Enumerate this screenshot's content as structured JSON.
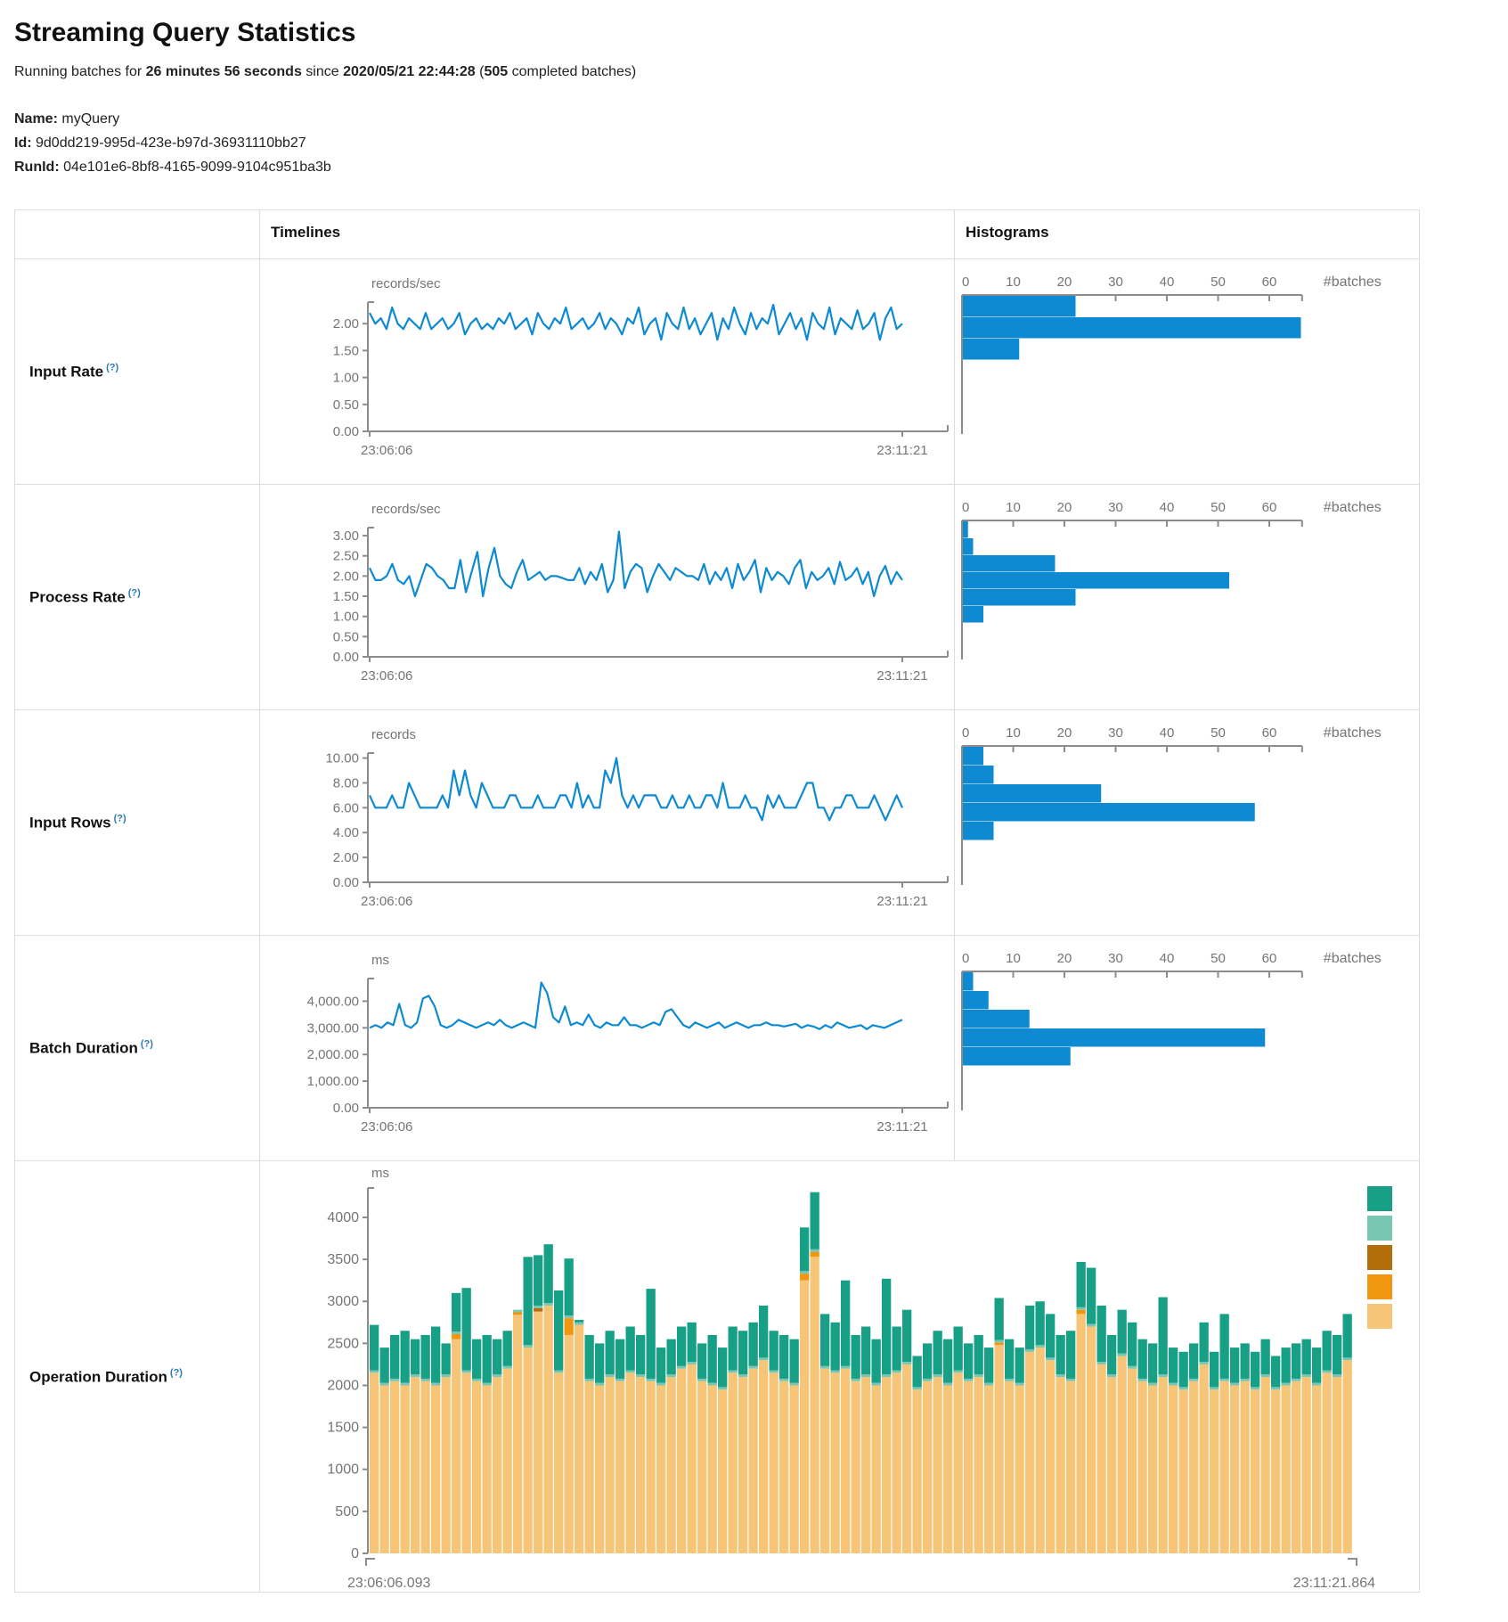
{
  "header": {
    "title": "Streaming Query Statistics",
    "running_prefix": "Running batches for ",
    "duration": "26 minutes 56 seconds",
    "since": " since ",
    "start_time": "2020/05/21 22:44:28",
    "paren_open": " (",
    "completed_batches": "505",
    "completed_suffix": " completed batches)",
    "name_label": "Name:",
    "name": "myQuery",
    "id_label": "Id:",
    "id": "9d0dd219-995d-423e-b97d-36931110bb27",
    "runid_label": "RunId:",
    "runid": "04e101e6-8bf8-4165-9099-9104c951ba3b"
  },
  "table": {
    "timelines_header": "Timelines",
    "histograms_header": "Histograms",
    "help_marker": "(?)",
    "batches_axis_label": "#batches"
  },
  "colors": {
    "line_blue": "#0d8ad1",
    "histogram_blue": "#0d8ad1",
    "axis_gray": "#8c8c8c",
    "tick_text": "#757575",
    "teal": "#17a085",
    "light_teal": "#79c7b2",
    "dark_orange": "#b26e0a",
    "orange": "#f0960f",
    "tan": "#f6c577"
  },
  "chart_data": [
    {
      "row_label": "Input Rate",
      "type": "line",
      "unit": "records/sec",
      "x_start": "23:06:06",
      "x_end": "23:11:21",
      "y_tick_values": [
        0,
        0.5,
        1,
        1.5,
        2
      ],
      "y_tick_labels": [
        "0.00",
        "0.50",
        "1.00",
        "1.50",
        "2.00"
      ],
      "y_max": 2.4,
      "values": [
        2.2,
        2.0,
        2.1,
        1.9,
        2.3,
        2.0,
        1.9,
        2.1,
        2.0,
        1.9,
        2.2,
        1.9,
        2.0,
        2.1,
        1.9,
        2.0,
        2.2,
        1.8,
        2.0,
        2.1,
        1.9,
        2.0,
        1.9,
        2.1,
        2.0,
        2.2,
        1.9,
        2.0,
        2.1,
        1.8,
        2.2,
        2.0,
        1.9,
        2.1,
        2.0,
        2.3,
        1.9,
        2.0,
        2.1,
        1.9,
        2.0,
        2.2,
        1.9,
        2.1,
        2.0,
        1.8,
        2.1,
        2.0,
        2.3,
        1.8,
        2.0,
        2.1,
        1.7,
        2.2,
        2.0,
        1.9,
        2.3,
        1.9,
        2.1,
        1.8,
        2.0,
        2.2,
        1.7,
        2.1,
        1.9,
        2.3,
        2.0,
        1.8,
        2.2,
        1.9,
        2.1,
        2.0,
        2.35,
        1.8,
        2.0,
        2.2,
        1.9,
        2.1,
        1.7,
        2.2,
        2.0,
        1.9,
        2.3,
        1.8,
        2.1,
        2.0,
        1.9,
        2.25,
        1.9,
        2.0,
        2.2,
        1.7,
        2.1,
        2.3,
        1.9,
        2.0
      ],
      "histogram": {
        "tick_values": [
          0,
          10,
          20,
          30,
          40,
          50,
          60
        ],
        "axis_max": 66.4,
        "counts": [
          22,
          66,
          11
        ]
      }
    },
    {
      "row_label": "Process Rate",
      "type": "line",
      "unit": "records/sec",
      "x_start": "23:06:06",
      "x_end": "23:11:21",
      "y_tick_values": [
        0,
        0.5,
        1,
        1.5,
        2,
        2.5,
        3
      ],
      "y_tick_labels": [
        "0.00",
        "0.50",
        "1.00",
        "1.50",
        "2.00",
        "2.50",
        "3.00"
      ],
      "y_max": 3.2,
      "values": [
        2.2,
        1.9,
        1.9,
        2.0,
        2.3,
        1.9,
        1.8,
        2.0,
        1.5,
        1.9,
        2.3,
        2.2,
        2.0,
        1.9,
        1.7,
        1.7,
        2.4,
        1.6,
        2.1,
        2.6,
        1.5,
        2.2,
        2.7,
        2.0,
        1.8,
        1.7,
        2.1,
        2.4,
        1.9,
        2.0,
        2.1,
        1.9,
        2.0,
        2.0,
        1.95,
        1.9,
        1.9,
        2.2,
        1.8,
        2.1,
        1.9,
        2.3,
        1.6,
        1.9,
        3.1,
        1.7,
        2.1,
        2.3,
        2.2,
        1.6,
        2.0,
        2.3,
        2.1,
        1.9,
        2.2,
        2.1,
        2.0,
        2.0,
        1.9,
        2.3,
        1.8,
        2.1,
        1.9,
        2.2,
        1.7,
        2.3,
        1.9,
        2.1,
        2.4,
        1.6,
        2.2,
        1.9,
        2.1,
        2.0,
        1.8,
        2.2,
        2.4,
        1.7,
        2.1,
        1.9,
        2.0,
        2.2,
        1.8,
        2.35,
        1.9,
        2.0,
        2.2,
        1.8,
        2.1,
        1.5,
        2.0,
        2.25,
        1.8,
        2.1,
        1.9
      ],
      "histogram": {
        "tick_values": [
          0,
          10,
          20,
          30,
          40,
          50,
          60
        ],
        "axis_max": 66.4,
        "counts": [
          1,
          2,
          18,
          52,
          22,
          4
        ]
      }
    },
    {
      "row_label": "Input Rows",
      "type": "line",
      "unit": "records",
      "x_start": "23:06:06",
      "x_end": "23:11:21",
      "y_tick_values": [
        0,
        2,
        4,
        6,
        8,
        10
      ],
      "y_tick_labels": [
        "0.00",
        "2.00",
        "4.00",
        "6.00",
        "8.00",
        "10.00"
      ],
      "y_max": 10.4,
      "values": [
        7,
        6,
        6,
        6,
        7,
        6,
        6,
        8,
        7,
        6,
        6,
        6,
        6,
        7,
        6,
        9,
        7,
        9,
        7,
        6,
        8,
        7,
        6,
        6,
        6,
        7,
        7,
        6,
        6,
        6,
        7,
        6,
        6,
        6,
        7,
        7,
        6,
        8,
        6,
        7,
        6,
        6,
        9,
        8,
        10,
        7,
        6,
        7,
        6,
        7,
        7,
        7,
        6,
        6,
        7,
        6,
        6,
        7,
        6,
        6,
        7,
        7,
        6,
        8,
        6,
        6,
        6,
        7,
        6,
        6,
        5,
        7,
        6,
        7,
        6,
        6,
        6,
        7,
        8,
        8,
        6,
        6,
        5,
        6,
        6,
        7,
        7,
        6,
        6,
        6,
        7,
        6,
        5,
        6,
        7,
        6
      ],
      "histogram": {
        "tick_values": [
          0,
          10,
          20,
          30,
          40,
          50,
          60
        ],
        "axis_max": 66.4,
        "counts": [
          4,
          6,
          27,
          57,
          6
        ]
      }
    },
    {
      "row_label": "Batch Duration",
      "type": "line",
      "unit": "ms",
      "x_start": "23:06:06",
      "x_end": "23:11:21",
      "y_tick_values": [
        0,
        1000,
        2000,
        3000,
        4000
      ],
      "y_tick_labels": [
        "0.00",
        "1,000.00",
        "2,000.00",
        "3,000.00",
        "4,000.00"
      ],
      "y_max": 4850,
      "values": [
        3000,
        3100,
        3000,
        3200,
        3100,
        3900,
        3100,
        3000,
        3200,
        4100,
        4200,
        3800,
        3100,
        3000,
        3100,
        3300,
        3200,
        3100,
        3000,
        3100,
        3200,
        3100,
        3300,
        3100,
        3000,
        3100,
        3200,
        3100,
        3000,
        4700,
        4300,
        3400,
        3200,
        3800,
        3100,
        3200,
        3100,
        3500,
        3100,
        3000,
        3200,
        3100,
        3100,
        3400,
        3100,
        3100,
        3000,
        3100,
        3200,
        3100,
        3600,
        3700,
        3400,
        3100,
        3000,
        3200,
        3100,
        3000,
        3100,
        3200,
        3000,
        3100,
        3200,
        3100,
        3000,
        3100,
        3100,
        3200,
        3100,
        3100,
        3050,
        3100,
        3150,
        3000,
        3100,
        3050,
        2950,
        3100,
        3000,
        3200,
        3100,
        3000,
        3050,
        3100,
        2950,
        3100,
        3050,
        3000,
        3100,
        3200,
        3300
      ],
      "histogram": {
        "tick_values": [
          0,
          10,
          20,
          30,
          40,
          50,
          60
        ],
        "axis_max": 66.4,
        "counts": [
          2,
          5,
          13,
          59,
          21
        ]
      }
    },
    {
      "row_label": "Operation Duration",
      "type": "stacked_bar",
      "unit": "ms",
      "x_start": "23:06:06.093",
      "x_end": "23:11:21.864",
      "y_tick_values": [
        0,
        500,
        1000,
        1500,
        2000,
        2500,
        3000,
        3500,
        4000
      ],
      "y_tick_labels": [
        "0",
        "500",
        "1000",
        "1500",
        "2000",
        "2500",
        "3000",
        "3500",
        "4000"
      ],
      "y_max": 4350,
      "series": [
        {
          "name": "segment-tan",
          "color": "#f6c577",
          "values": [
            2150,
            2000,
            2050,
            2000,
            2100,
            2050,
            2000,
            2100,
            2550,
            2150,
            2050,
            2000,
            2100,
            2200,
            2840,
            2450,
            2880,
            2950,
            2150,
            2600,
            2720,
            2050,
            2000,
            2100,
            2050,
            2150,
            2100,
            2050,
            2000,
            2100,
            2200,
            2250,
            2050,
            2000,
            1950,
            2150,
            2100,
            2200,
            2300,
            2150,
            2050,
            2000,
            3250,
            3530,
            2200,
            2150,
            2200,
            2050,
            2100,
            2000,
            2100,
            2150,
            2250,
            1950,
            2050,
            2100,
            2000,
            2150,
            2050,
            2100,
            2000,
            2480,
            2050,
            2000,
            2400,
            2450,
            2300,
            2100,
            2050,
            2850,
            2700,
            2250,
            2100,
            2350,
            2200,
            2050,
            2000,
            2100,
            2000,
            1950,
            2050,
            2250,
            1950,
            2050,
            2000,
            2050,
            1950,
            2100,
            1950,
            2000,
            2050,
            2100,
            2000,
            2150,
            2100,
            2300
          ]
        },
        {
          "name": "segment-orange",
          "color": "#f0960f",
          "values": [
            0,
            0,
            0,
            0,
            0,
            0,
            0,
            0,
            60,
            0,
            0,
            0,
            0,
            0,
            30,
            0,
            0,
            0,
            0,
            200,
            0,
            0,
            0,
            0,
            0,
            0,
            0,
            0,
            0,
            0,
            0,
            0,
            0,
            0,
            0,
            0,
            0,
            0,
            0,
            0,
            0,
            0,
            80,
            60,
            0,
            0,
            0,
            0,
            0,
            0,
            0,
            0,
            0,
            0,
            0,
            0,
            0,
            0,
            0,
            0,
            0,
            30,
            0,
            0,
            0,
            0,
            0,
            0,
            0,
            50,
            0,
            0,
            0,
            0,
            0,
            0,
            0,
            0,
            0,
            0,
            0,
            0,
            0,
            0,
            0,
            0,
            0,
            0,
            0,
            0,
            0,
            0,
            0,
            0,
            0,
            0
          ]
        },
        {
          "name": "segment-dark-orange",
          "color": "#b26e0a",
          "values": [
            0,
            0,
            0,
            0,
            0,
            0,
            0,
            0,
            0,
            0,
            0,
            0,
            0,
            0,
            0,
            0,
            40,
            0,
            0,
            0,
            0,
            0,
            0,
            0,
            0,
            0,
            0,
            0,
            0,
            0,
            0,
            0,
            0,
            0,
            0,
            0,
            0,
            0,
            0,
            0,
            0,
            0,
            0,
            0,
            0,
            0,
            0,
            0,
            0,
            0,
            0,
            0,
            0,
            0,
            0,
            0,
            0,
            0,
            0,
            0,
            0,
            0,
            0,
            0,
            0,
            0,
            0,
            0,
            0,
            0,
            0,
            0,
            0,
            0,
            0,
            0,
            0,
            0,
            0,
            0,
            0,
            0,
            0,
            0,
            0,
            0,
            0,
            0,
            0,
            0,
            0,
            0,
            0,
            0,
            0,
            0
          ]
        },
        {
          "name": "segment-light-teal",
          "color": "#79c7b2",
          "values": [
            30,
            30,
            30,
            30,
            30,
            30,
            30,
            30,
            30,
            30,
            30,
            30,
            30,
            30,
            30,
            30,
            30,
            30,
            30,
            30,
            30,
            30,
            30,
            30,
            30,
            30,
            30,
            30,
            30,
            30,
            30,
            30,
            30,
            30,
            30,
            30,
            30,
            30,
            30,
            30,
            30,
            30,
            30,
            30,
            30,
            30,
            30,
            30,
            30,
            30,
            30,
            30,
            30,
            30,
            30,
            30,
            30,
            30,
            30,
            30,
            30,
            30,
            30,
            30,
            30,
            30,
            30,
            30,
            30,
            30,
            30,
            30,
            30,
            30,
            30,
            30,
            30,
            30,
            30,
            30,
            30,
            30,
            30,
            30,
            30,
            30,
            30,
            30,
            30,
            30,
            30,
            30,
            30,
            30,
            30,
            30
          ]
        },
        {
          "name": "segment-teal",
          "color": "#17a085",
          "values": [
            540,
            420,
            520,
            620,
            420,
            520,
            670,
            370,
            460,
            980,
            470,
            570,
            420,
            420,
            0,
            1050,
            600,
            700,
            950,
            680,
            30,
            520,
            470,
            520,
            470,
            520,
            470,
            1070,
            420,
            420,
            470,
            470,
            420,
            570,
            470,
            520,
            520,
            520,
            620,
            470,
            520,
            520,
            520,
            680,
            620,
            570,
            1020,
            520,
            570,
            520,
            1140,
            520,
            620,
            370,
            420,
            520,
            520,
            520,
            420,
            470,
            420,
            500,
            470,
            420,
            520,
            520,
            520,
            470,
            570,
            540,
            670,
            670,
            470,
            520,
            520,
            470,
            470,
            920,
            420,
            420,
            420,
            470,
            420,
            770,
            420,
            420,
            420,
            420,
            370,
            420,
            420,
            420,
            420,
            470,
            470,
            520
          ]
        }
      ],
      "legend_colors": [
        "#17a085",
        "#79c7b2",
        "#b26e0a",
        "#f0960f",
        "#f6c577"
      ]
    }
  ]
}
